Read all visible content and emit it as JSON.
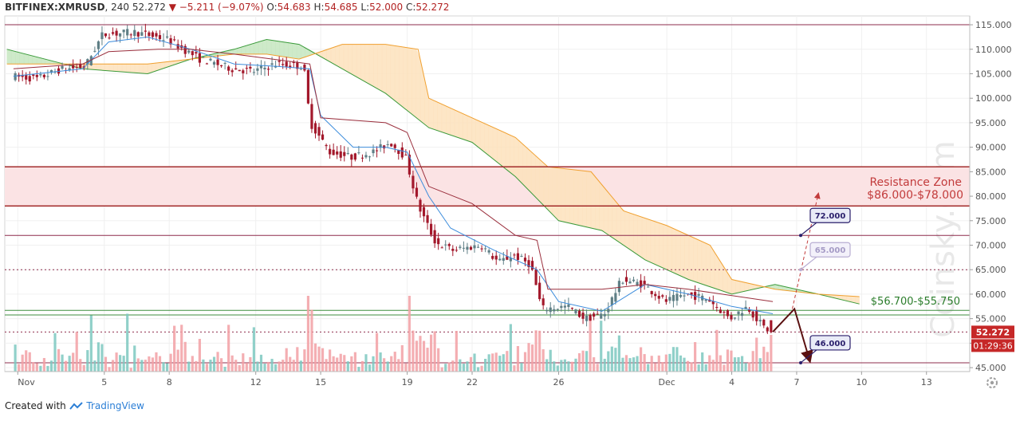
{
  "header": {
    "symbol": "BITFINEX:XMRUSD",
    "interval": ", 240",
    "last": "52.272",
    "arrow": "▼",
    "change": "−5.211 (−9.07%)",
    "open_label": "O:",
    "open": "54.683",
    "high_label": "H:",
    "high": "54.685",
    "low_label": "L:",
    "low": "52.000",
    "close_label": "C:",
    "close": "52.272"
  },
  "footer": {
    "created_with": "Created with",
    "brand": "TradingView"
  },
  "watermark": "Coinsky.com",
  "colors": {
    "up": "#5f7f86",
    "down": "#a3182b",
    "vol_up": "#7dc8c0",
    "vol_down": "#f2a0a5",
    "cloud_green": "#c6e7c0",
    "cloud_orange": "#fde2bd",
    "span_a": "#3a9a3a",
    "span_b": "#f0a030",
    "tenkan": "#3d8ddc",
    "kijun": "#9a2e3c",
    "resistance_fill": "#fbe3e4",
    "resistance_line": "#9b1c1c",
    "support_line": "#3e8e3e",
    "level_line": "#8e2c4c",
    "box_fill": "#e9ebf7",
    "box_border": "#2a1f6b",
    "last_price_bg": "#c62828",
    "text_green": "#2b7d2b",
    "text_red": "#c23b3b"
  },
  "chart_data": {
    "type": "candlestick",
    "title": "BITFINEX:XMRUSD, 240",
    "ylim": [
      44.2,
      116.8
    ],
    "y_ticks": [
      "45.000",
      "50.000",
      "55.000",
      "60.000",
      "65.000",
      "70.000",
      "75.000",
      "80.000",
      "85.000",
      "90.000",
      "95.000",
      "100.000",
      "105.000",
      "110.000",
      "115.000"
    ],
    "x_ticks": [
      {
        "label": "Nov",
        "day": 1
      },
      {
        "label": "5",
        "day": 5
      },
      {
        "label": "8",
        "day": 8
      },
      {
        "label": "12",
        "day": 12
      },
      {
        "label": "15",
        "day": 15
      },
      {
        "label": "19",
        "day": 19
      },
      {
        "label": "22",
        "day": 22
      },
      {
        "label": "26",
        "day": 26
      },
      {
        "label": "Dec",
        "day": 31
      },
      {
        "label": "4",
        "day": 34
      },
      {
        "label": "7",
        "day": 37
      },
      {
        "label": "10",
        "day": 40
      },
      {
        "label": "13",
        "day": 43
      }
    ],
    "price_path": [
      {
        "day": 0.8,
        "price": 104.5
      },
      {
        "day": 2.0,
        "price": 104.0
      },
      {
        "day": 3.0,
        "price": 105.8
      },
      {
        "day": 4.2,
        "price": 106.5
      },
      {
        "day": 5.0,
        "price": 113.0
      },
      {
        "day": 6.5,
        "price": 113.5
      },
      {
        "day": 8.0,
        "price": 112.0
      },
      {
        "day": 9.5,
        "price": 108.0
      },
      {
        "day": 11.0,
        "price": 106.0
      },
      {
        "day": 12.0,
        "price": 105.5
      },
      {
        "day": 13.0,
        "price": 107.0
      },
      {
        "day": 14.3,
        "price": 106.5
      },
      {
        "day": 14.6,
        "price": 95.0
      },
      {
        "day": 15.5,
        "price": 89.0
      },
      {
        "day": 16.5,
        "price": 88.0
      },
      {
        "day": 17.5,
        "price": 89.0
      },
      {
        "day": 18.3,
        "price": 91.0
      },
      {
        "day": 19.0,
        "price": 88.0
      },
      {
        "day": 19.6,
        "price": 78.0
      },
      {
        "day": 20.4,
        "price": 70.5
      },
      {
        "day": 21.2,
        "price": 69.0
      },
      {
        "day": 22.5,
        "price": 70.0
      },
      {
        "day": 23.3,
        "price": 66.5
      },
      {
        "day": 24.0,
        "price": 68.0
      },
      {
        "day": 24.8,
        "price": 66.0
      },
      {
        "day": 25.3,
        "price": 57.0
      },
      {
        "day": 26.5,
        "price": 57.5
      },
      {
        "day": 27.3,
        "price": 55.0
      },
      {
        "day": 28.2,
        "price": 56.0
      },
      {
        "day": 29.0,
        "price": 63.0
      },
      {
        "day": 30.0,
        "price": 62.0
      },
      {
        "day": 31.0,
        "price": 58.5
      },
      {
        "day": 32.0,
        "price": 60.0
      },
      {
        "day": 33.0,
        "price": 59.0
      },
      {
        "day": 34.0,
        "price": 55.0
      },
      {
        "day": 34.8,
        "price": 57.5
      },
      {
        "day": 35.5,
        "price": 53.5
      },
      {
        "day": 35.9,
        "price": 52.272
      }
    ],
    "cloud_span_a": [
      {
        "day": 0.5,
        "price": 110
      },
      {
        "day": 4,
        "price": 106
      },
      {
        "day": 7,
        "price": 105
      },
      {
        "day": 9,
        "price": 108
      },
      {
        "day": 11,
        "price": 110
      },
      {
        "day": 12.5,
        "price": 112
      },
      {
        "day": 14,
        "price": 111
      },
      {
        "day": 16,
        "price": 106
      },
      {
        "day": 18,
        "price": 101
      },
      {
        "day": 20,
        "price": 94
      },
      {
        "day": 22,
        "price": 91
      },
      {
        "day": 24,
        "price": 84
      },
      {
        "day": 26,
        "price": 75
      },
      {
        "day": 28,
        "price": 73
      },
      {
        "day": 30,
        "price": 67
      },
      {
        "day": 32,
        "price": 63
      },
      {
        "day": 34,
        "price": 60
      },
      {
        "day": 36,
        "price": 62
      },
      {
        "day": 38,
        "price": 60
      },
      {
        "day": 39.9,
        "price": 58
      }
    ],
    "cloud_span_b": [
      {
        "day": 0.5,
        "price": 107
      },
      {
        "day": 4,
        "price": 107
      },
      {
        "day": 7,
        "price": 107
      },
      {
        "day": 9,
        "price": 108
      },
      {
        "day": 11,
        "price": 109
      },
      {
        "day": 12.5,
        "price": 109
      },
      {
        "day": 14,
        "price": 108
      },
      {
        "day": 16,
        "price": 111
      },
      {
        "day": 18,
        "price": 111
      },
      {
        "day": 19.5,
        "price": 110
      },
      {
        "day": 20,
        "price": 100
      },
      {
        "day": 22,
        "price": 96
      },
      {
        "day": 24,
        "price": 92
      },
      {
        "day": 25.5,
        "price": 86
      },
      {
        "day": 27.5,
        "price": 85
      },
      {
        "day": 29,
        "price": 77
      },
      {
        "day": 31,
        "price": 74
      },
      {
        "day": 33,
        "price": 70
      },
      {
        "day": 34,
        "price": 63
      },
      {
        "day": 36,
        "price": 61
      },
      {
        "day": 38,
        "price": 60
      },
      {
        "day": 39.9,
        "price": 59.5
      }
    ],
    "tenkan_path": [
      {
        "day": 0.8,
        "price": 104.5
      },
      {
        "day": 4.0,
        "price": 106.0
      },
      {
        "day": 5.2,
        "price": 111.5
      },
      {
        "day": 7.0,
        "price": 112.5
      },
      {
        "day": 9.0,
        "price": 110.0
      },
      {
        "day": 11.0,
        "price": 107.0
      },
      {
        "day": 13.0,
        "price": 106.5
      },
      {
        "day": 14.5,
        "price": 106.0
      },
      {
        "day": 15.0,
        "price": 96.5
      },
      {
        "day": 16.5,
        "price": 90.0
      },
      {
        "day": 18.0,
        "price": 90.0
      },
      {
        "day": 19.0,
        "price": 89.0
      },
      {
        "day": 20.0,
        "price": 80.0
      },
      {
        "day": 21.0,
        "price": 73.5
      },
      {
        "day": 23.0,
        "price": 69.0
      },
      {
        "day": 25.0,
        "price": 65.0
      },
      {
        "day": 26.0,
        "price": 58.5
      },
      {
        "day": 28.0,
        "price": 56.5
      },
      {
        "day": 30.0,
        "price": 62.0
      },
      {
        "day": 32.0,
        "price": 60.0
      },
      {
        "day": 34.0,
        "price": 57.5
      },
      {
        "day": 35.9,
        "price": 56.0
      }
    ],
    "kijun_path": [
      {
        "day": 0.8,
        "price": 106.0
      },
      {
        "day": 4.0,
        "price": 107.0
      },
      {
        "day": 5.2,
        "price": 109.5
      },
      {
        "day": 7.5,
        "price": 110.0
      },
      {
        "day": 9.0,
        "price": 110.0
      },
      {
        "day": 11.0,
        "price": 109.0
      },
      {
        "day": 14.5,
        "price": 107.0
      },
      {
        "day": 15.0,
        "price": 96.0
      },
      {
        "day": 18.0,
        "price": 95.0
      },
      {
        "day": 19.0,
        "price": 93.0
      },
      {
        "day": 20.0,
        "price": 82.0
      },
      {
        "day": 22.0,
        "price": 78.5
      },
      {
        "day": 24.0,
        "price": 72.0
      },
      {
        "day": 25.0,
        "price": 71.0
      },
      {
        "day": 25.5,
        "price": 61.0
      },
      {
        "day": 28.0,
        "price": 61.0
      },
      {
        "day": 30.0,
        "price": 62.0
      },
      {
        "day": 32.0,
        "price": 61.0
      },
      {
        "day": 35.9,
        "price": 58.5
      }
    ],
    "horizontal_lines": [
      {
        "price": 115.0,
        "style": "level"
      },
      {
        "price": 72.0,
        "style": "level"
      },
      {
        "price": 65.0,
        "style": "dotted"
      },
      {
        "price": 56.7,
        "style": "support"
      },
      {
        "price": 55.75,
        "style": "support"
      },
      {
        "price": 52.272,
        "style": "dotted"
      },
      {
        "price": 46.0,
        "style": "level"
      }
    ],
    "resistance_zone": {
      "high": 86.0,
      "low": 78.0
    },
    "annotations": {
      "resistance_title": "Resistance Zone",
      "resistance_range": "$86.000-$78.000",
      "support_label": "$56.700-$55.750",
      "box_72": "72.000",
      "box_65": "65.000",
      "box_46": "46.000",
      "last_price": "52.272",
      "countdown": "01:29:36"
    },
    "projection": {
      "down_path": [
        {
          "day": 35.9,
          "price": 52.3
        },
        {
          "day": 36.9,
          "price": 57.0
        },
        {
          "day": 37.6,
          "price": 46.5
        }
      ],
      "up_path": [
        {
          "day": 36.8,
          "price": 57.0
        },
        {
          "day": 38.0,
          "price": 80.5
        }
      ]
    }
  }
}
